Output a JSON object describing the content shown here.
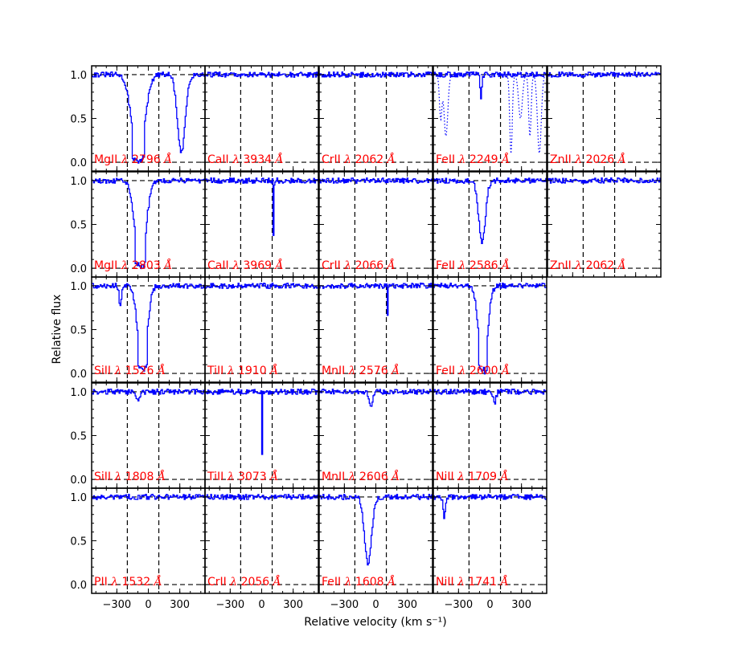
{
  "chart_data": {
    "type": "line",
    "layout": {
      "rows": 5,
      "cols": 5
    },
    "xlabel": "Relative velocity (km s⁻¹)",
    "ylabel": "Relative flux",
    "xlim": [
      -540,
      540
    ],
    "ylim": [
      -0.1,
      1.1
    ],
    "xticks": [
      -300,
      0,
      300
    ],
    "xtick_labels": [
      "−300",
      "0",
      "300"
    ],
    "yticks": [
      0.0,
      0.5,
      1.0
    ],
    "ytick_labels": [
      "0.0",
      "0.5",
      "1.0"
    ],
    "velocity_markers": [
      -200,
      100
    ],
    "colors": {
      "spectrum": "#0000ff",
      "label": "#ff0000",
      "reference": "#000000"
    },
    "panels": [
      {
        "row": 0,
        "col": 0,
        "ion": "MgII",
        "wave": "2796",
        "absorption": [
          {
            "c": -100,
            "w": 130,
            "d": 1.0
          },
          {
            "c": 310,
            "w": 80,
            "d": 0.9
          }
        ],
        "saturated": true
      },
      {
        "row": 0,
        "col": 1,
        "ion": "CaII",
        "wave": "3934",
        "absorption": []
      },
      {
        "row": 0,
        "col": 2,
        "ion": "CrII",
        "wave": "2062",
        "absorption": []
      },
      {
        "row": 0,
        "col": 3,
        "ion": "FeII",
        "wave": "2249",
        "absorption": [
          {
            "c": -90,
            "w": 20,
            "d": 0.25
          }
        ],
        "blend": true
      },
      {
        "row": 0,
        "col": 4,
        "ion": "ZnII",
        "wave": "2026",
        "absorption": []
      },
      {
        "row": 1,
        "col": 0,
        "ion": "MgII",
        "wave": "2803",
        "absorption": [
          {
            "c": -80,
            "w": 110,
            "d": 1.0
          }
        ]
      },
      {
        "row": 1,
        "col": 1,
        "ion": "CaII",
        "wave": "3969",
        "absorption": [
          {
            "c": 110,
            "w": 6,
            "d": 0.78
          }
        ]
      },
      {
        "row": 1,
        "col": 2,
        "ion": "CrII",
        "wave": "2066",
        "absorption": []
      },
      {
        "row": 1,
        "col": 3,
        "ion": "FeII",
        "wave": "2586",
        "absorption": [
          {
            "c": -80,
            "w": 70,
            "d": 0.72
          }
        ]
      },
      {
        "row": 1,
        "col": 4,
        "ion": "ZnII",
        "wave": "2062",
        "absorption": []
      },
      {
        "row": 2,
        "col": 0,
        "ion": "SiII",
        "wave": "1526",
        "absorption": [
          {
            "c": -60,
            "w": 95,
            "d": 0.95
          },
          {
            "c": -270,
            "w": 25,
            "d": 0.25
          }
        ]
      },
      {
        "row": 2,
        "col": 1,
        "ion": "TiII",
        "wave": "1910",
        "absorption": []
      },
      {
        "row": 2,
        "col": 2,
        "ion": "MnII",
        "wave": "2576",
        "absorption": [
          {
            "c": 110,
            "w": 5,
            "d": 0.52
          }
        ]
      },
      {
        "row": 2,
        "col": 3,
        "ion": "FeII",
        "wave": "2600",
        "absorption": [
          {
            "c": -70,
            "w": 90,
            "d": 0.95
          }
        ]
      },
      {
        "row": 3,
        "col": 0,
        "ion": "SiII",
        "wave": "1808",
        "absorption": [
          {
            "c": -100,
            "w": 30,
            "d": 0.12
          }
        ]
      },
      {
        "row": 3,
        "col": 1,
        "ion": "TiII",
        "wave": "3073",
        "absorption": [
          {
            "c": 0,
            "w": 6,
            "d": 0.7
          }
        ]
      },
      {
        "row": 3,
        "col": 2,
        "ion": "MnII",
        "wave": "2606",
        "absorption": [
          {
            "c": -50,
            "w": 40,
            "d": 0.15
          }
        ]
      },
      {
        "row": 3,
        "col": 3,
        "ion": "NiII",
        "wave": "1709",
        "absorption": [
          {
            "c": 40,
            "w": 30,
            "d": 0.12
          }
        ]
      },
      {
        "row": 4,
        "col": 0,
        "ion": "PII",
        "wave": "1532",
        "absorption": []
      },
      {
        "row": 4,
        "col": 1,
        "ion": "CrII",
        "wave": "2056",
        "absorption": []
      },
      {
        "row": 4,
        "col": 2,
        "ion": "FeII",
        "wave": "1608",
        "absorption": [
          {
            "c": -80,
            "w": 75,
            "d": 0.75
          }
        ]
      },
      {
        "row": 4,
        "col": 3,
        "ion": "NiII",
        "wave": "1741",
        "absorption": [
          {
            "c": -440,
            "w": 25,
            "d": 0.25
          }
        ]
      }
    ]
  }
}
